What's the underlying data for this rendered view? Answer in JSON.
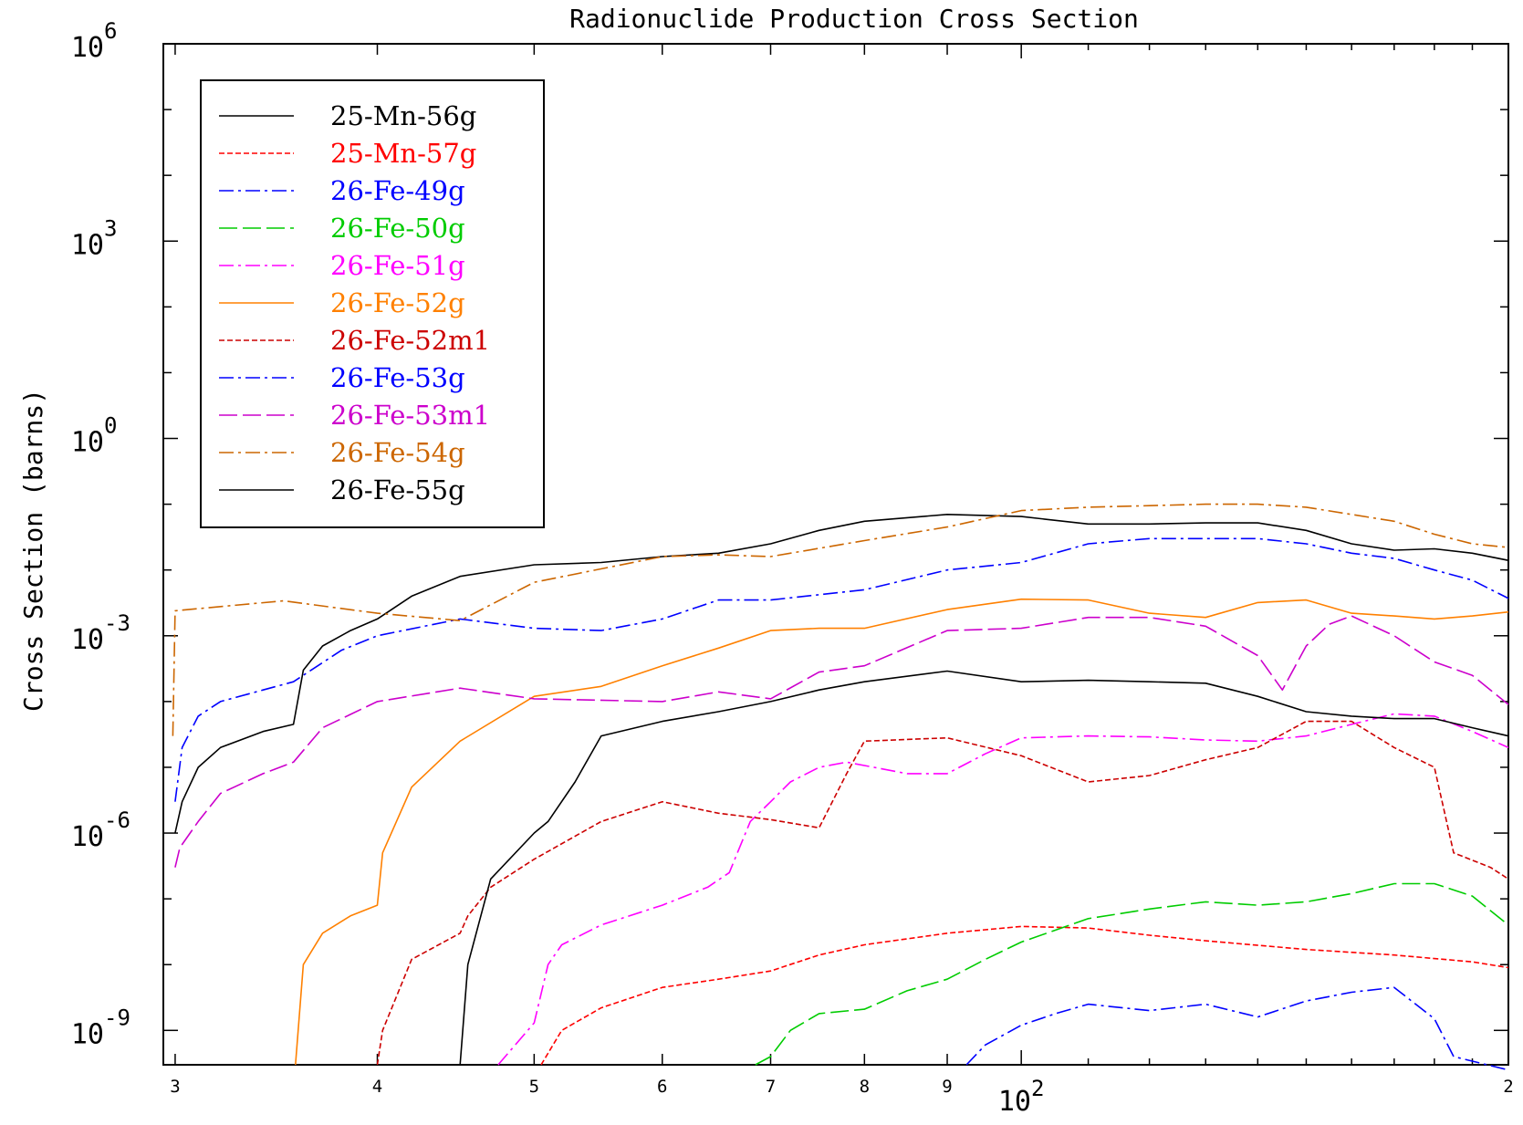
{
  "chart_data": {
    "type": "line",
    "title": "Radionuclide Production Cross Section",
    "xlabel": "",
    "ylabel": "Cross Section (barns)",
    "xscale": "log",
    "yscale": "log",
    "xlim": [
      29.5,
      200
    ],
    "ylim": [
      3e-10,
      1000000
    ],
    "x_multiplier_label": {
      "base": "10",
      "exp": "2"
    },
    "x_ticks": [
      {
        "value": 30,
        "label": "3"
      },
      {
        "value": 40,
        "label": "4"
      },
      {
        "value": 50,
        "label": "5"
      },
      {
        "value": 60,
        "label": "6"
      },
      {
        "value": 70,
        "label": "7"
      },
      {
        "value": 80,
        "label": "8"
      },
      {
        "value": 90,
        "label": "9"
      },
      {
        "value": 200,
        "label": "2"
      }
    ],
    "y_ticks": [
      {
        "value": 1e-09,
        "base": "10",
        "exp": "-9"
      },
      {
        "value": 1e-06,
        "base": "10",
        "exp": "-6"
      },
      {
        "value": 0.001,
        "base": "10",
        "exp": "-3"
      },
      {
        "value": 1,
        "base": "10",
        "exp": "0"
      },
      {
        "value": 1000,
        "base": "10",
        "exp": "3"
      },
      {
        "value": 1000000,
        "base": "10",
        "exp": "6"
      }
    ],
    "legend_position": "top-left",
    "grid": false,
    "series": [
      {
        "name": "25-Mn-56g",
        "color": "#000000",
        "dash": "solid",
        "points": [
          [
            30,
            1e-06
          ],
          [
            30.3,
            3e-06
          ],
          [
            31,
            1e-05
          ],
          [
            32,
            2e-05
          ],
          [
            34,
            3.5e-05
          ],
          [
            35.5,
            4.5e-05
          ],
          [
            36,
            0.0003
          ],
          [
            37,
            0.0007
          ],
          [
            38.5,
            0.0012
          ],
          [
            40,
            0.0018
          ],
          [
            42,
            0.004
          ],
          [
            45,
            0.008
          ],
          [
            50,
            0.012
          ],
          [
            55,
            0.013
          ],
          [
            60,
            0.016
          ],
          [
            65,
            0.018
          ],
          [
            70,
            0.025
          ],
          [
            75,
            0.04
          ],
          [
            80,
            0.055
          ],
          [
            90,
            0.07
          ],
          [
            100,
            0.065
          ],
          [
            110,
            0.05
          ],
          [
            120,
            0.05
          ],
          [
            130,
            0.052
          ],
          [
            140,
            0.052
          ],
          [
            150,
            0.04
          ],
          [
            160,
            0.025
          ],
          [
            170,
            0.02
          ],
          [
            180,
            0.021
          ],
          [
            190,
            0.018
          ],
          [
            200,
            0.014
          ]
        ]
      },
      {
        "name": "25-Mn-57g",
        "color": "#ff0000",
        "dash": "short",
        "points": [
          [
            50.5,
            3e-10
          ],
          [
            52,
            1e-09
          ],
          [
            55,
            2.2e-09
          ],
          [
            60,
            4.5e-09
          ],
          [
            65,
            6e-09
          ],
          [
            70,
            8e-09
          ],
          [
            75,
            1.4e-08
          ],
          [
            80,
            2e-08
          ],
          [
            90,
            3e-08
          ],
          [
            100,
            3.8e-08
          ],
          [
            110,
            3.6e-08
          ],
          [
            120,
            2.8e-08
          ],
          [
            130,
            2.3e-08
          ],
          [
            150,
            1.7e-08
          ],
          [
            170,
            1.4e-08
          ],
          [
            190,
            1.1e-08
          ],
          [
            200,
            9e-09
          ]
        ]
      },
      {
        "name": "26-Fe-49g",
        "color": "#0000ff",
        "dash": "dashdot",
        "points": [
          [
            92.5,
            3e-10
          ],
          [
            95,
            6e-10
          ],
          [
            100,
            1.2e-09
          ],
          [
            105,
            1.8e-09
          ],
          [
            110,
            2.5e-09
          ],
          [
            120,
            2e-09
          ],
          [
            130,
            2.5e-09
          ],
          [
            140,
            1.6e-09
          ],
          [
            150,
            2.8e-09
          ],
          [
            160,
            3.8e-09
          ],
          [
            170,
            4.5e-09
          ],
          [
            180,
            1.5e-09
          ],
          [
            185,
            4e-10
          ],
          [
            200,
            2.5e-10
          ]
        ]
      },
      {
        "name": "26-Fe-50g",
        "color": "#00cc00",
        "dash": "longdash",
        "points": [
          [
            68.5,
            3e-10
          ],
          [
            70,
            4e-10
          ],
          [
            72,
            1e-09
          ],
          [
            75,
            1.8e-09
          ],
          [
            80,
            2.1e-09
          ],
          [
            85,
            4e-09
          ],
          [
            90,
            6e-09
          ],
          [
            95,
            1.2e-08
          ],
          [
            100,
            2.2e-08
          ],
          [
            110,
            5e-08
          ],
          [
            120,
            7e-08
          ],
          [
            130,
            9e-08
          ],
          [
            140,
            8e-08
          ],
          [
            150,
            9e-08
          ],
          [
            160,
            1.2e-07
          ],
          [
            170,
            1.7e-07
          ],
          [
            180,
            1.7e-07
          ],
          [
            190,
            1.1e-07
          ],
          [
            200,
            4e-08
          ]
        ]
      },
      {
        "name": "26-Fe-51g",
        "color": "#ff00ff",
        "dash": "dashdot",
        "points": [
          [
            47.5,
            3e-10
          ],
          [
            50,
            1.3e-09
          ],
          [
            51,
            1e-08
          ],
          [
            52,
            2e-08
          ],
          [
            55,
            4e-08
          ],
          [
            60,
            8e-08
          ],
          [
            64,
            1.5e-07
          ],
          [
            66,
            2.5e-07
          ],
          [
            68,
            1.5e-06
          ],
          [
            70,
            3e-06
          ],
          [
            72,
            6e-06
          ],
          [
            75,
            1e-05
          ],
          [
            78,
            1.2e-05
          ],
          [
            85,
            8e-06
          ],
          [
            90,
            8e-06
          ],
          [
            95,
            1.6e-05
          ],
          [
            100,
            2.8e-05
          ],
          [
            110,
            3e-05
          ],
          [
            120,
            2.9e-05
          ],
          [
            130,
            2.6e-05
          ],
          [
            140,
            2.5e-05
          ],
          [
            150,
            3e-05
          ],
          [
            160,
            4.5e-05
          ],
          [
            170,
            6.5e-05
          ],
          [
            180,
            6e-05
          ],
          [
            190,
            3.5e-05
          ],
          [
            200,
            2e-05
          ]
        ]
      },
      {
        "name": "26-Fe-52g",
        "color": "#ff8000",
        "dash": "solid",
        "points": [
          [
            35.6,
            3e-10
          ],
          [
            36,
            1e-08
          ],
          [
            37,
            3e-08
          ],
          [
            38.5,
            5.5e-08
          ],
          [
            40,
            8e-08
          ],
          [
            40.3,
            5e-07
          ],
          [
            42,
            5e-06
          ],
          [
            45,
            2.5e-05
          ],
          [
            50,
            0.00012
          ],
          [
            55,
            0.00017
          ],
          [
            60,
            0.00035
          ],
          [
            65,
            0.00065
          ],
          [
            70,
            0.0012
          ],
          [
            75,
            0.0013
          ],
          [
            80,
            0.0013
          ],
          [
            90,
            0.0025
          ],
          [
            100,
            0.0036
          ],
          [
            110,
            0.0035
          ],
          [
            120,
            0.0022
          ],
          [
            130,
            0.0019
          ],
          [
            140,
            0.0032
          ],
          [
            150,
            0.0035
          ],
          [
            160,
            0.0022
          ],
          [
            170,
            0.002
          ],
          [
            180,
            0.0018
          ],
          [
            190,
            0.002
          ],
          [
            200,
            0.0023
          ]
        ]
      },
      {
        "name": "26-Fe-52m1",
        "color": "#cc0000",
        "dash": "short",
        "points": [
          [
            40,
            3e-10
          ],
          [
            40.3,
            1e-09
          ],
          [
            42,
            1.2e-08
          ],
          [
            45,
            3e-08
          ],
          [
            45.5,
            5.5e-08
          ],
          [
            47,
            1.5e-07
          ],
          [
            50,
            4e-07
          ],
          [
            55,
            1.5e-06
          ],
          [
            60,
            3e-06
          ],
          [
            65,
            2e-06
          ],
          [
            70,
            1.6e-06
          ],
          [
            75,
            1.2e-06
          ],
          [
            78,
            8e-06
          ],
          [
            80,
            2.5e-05
          ],
          [
            90,
            2.8e-05
          ],
          [
            100,
            1.5e-05
          ],
          [
            110,
            6e-06
          ],
          [
            120,
            7.5e-06
          ],
          [
            130,
            1.3e-05
          ],
          [
            140,
            2e-05
          ],
          [
            150,
            5e-05
          ],
          [
            160,
            5e-05
          ],
          [
            170,
            2e-05
          ],
          [
            180,
            1e-05
          ],
          [
            185,
            5e-07
          ],
          [
            195,
            3e-07
          ],
          [
            200,
            2e-07
          ]
        ]
      },
      {
        "name": "26-Fe-53g",
        "color": "#0000ff",
        "dash": "dashdot",
        "points": [
          [
            30,
            3e-06
          ],
          [
            30.3,
            2e-05
          ],
          [
            31,
            6e-05
          ],
          [
            32,
            0.0001
          ],
          [
            34,
            0.00015
          ],
          [
            35.5,
            0.0002
          ],
          [
            38,
            0.0006
          ],
          [
            40,
            0.001
          ],
          [
            45,
            0.0018
          ],
          [
            50,
            0.0013
          ],
          [
            55,
            0.0012
          ],
          [
            60,
            0.0018
          ],
          [
            65,
            0.0035
          ],
          [
            70,
            0.0035
          ],
          [
            80,
            0.005
          ],
          [
            90,
            0.01
          ],
          [
            100,
            0.013
          ],
          [
            110,
            0.025
          ],
          [
            120,
            0.03
          ],
          [
            140,
            0.03
          ],
          [
            150,
            0.025
          ],
          [
            160,
            0.018
          ],
          [
            170,
            0.015
          ],
          [
            180,
            0.01
          ],
          [
            190,
            0.007
          ],
          [
            200,
            0.0037
          ]
        ]
      },
      {
        "name": "26-Fe-53m1",
        "color": "#cc00cc",
        "dash": "longdash",
        "points": [
          [
            30,
            3e-07
          ],
          [
            30.2,
            6e-07
          ],
          [
            31,
            1.5e-06
          ],
          [
            32,
            4e-06
          ],
          [
            34,
            8e-06
          ],
          [
            35.5,
            1.2e-05
          ],
          [
            37,
            4e-05
          ],
          [
            40,
            0.0001
          ],
          [
            45,
            0.00016
          ],
          [
            50,
            0.00011
          ],
          [
            60,
            0.0001
          ],
          [
            65,
            0.00014
          ],
          [
            70,
            0.00011
          ],
          [
            75,
            0.00028
          ],
          [
            80,
            0.00035
          ],
          [
            90,
            0.0012
          ],
          [
            100,
            0.0013
          ],
          [
            110,
            0.0019
          ],
          [
            120,
            0.0019
          ],
          [
            130,
            0.0014
          ],
          [
            140,
            0.0005
          ],
          [
            145,
            0.00015
          ],
          [
            150,
            0.0007
          ],
          [
            155,
            0.0015
          ],
          [
            160,
            0.002
          ],
          [
            170,
            0.001
          ],
          [
            180,
            0.0004
          ],
          [
            190,
            0.00025
          ],
          [
            200,
            9e-05
          ]
        ]
      },
      {
        "name": "26-Fe-54g",
        "color": "#cc6600",
        "dash": "dashdot",
        "points": [
          [
            29.9,
            3e-05
          ],
          [
            30,
            0.0024
          ],
          [
            35,
            0.0034
          ],
          [
            40,
            0.0022
          ],
          [
            45,
            0.0017
          ],
          [
            50,
            0.0065
          ],
          [
            60,
            0.016
          ],
          [
            65,
            0.017
          ],
          [
            70,
            0.016
          ],
          [
            80,
            0.028
          ],
          [
            90,
            0.045
          ],
          [
            100,
            0.08
          ],
          [
            110,
            0.09
          ],
          [
            120,
            0.095
          ],
          [
            130,
            0.1
          ],
          [
            140,
            0.1
          ],
          [
            150,
            0.09
          ],
          [
            170,
            0.055
          ],
          [
            180,
            0.035
          ],
          [
            190,
            0.025
          ],
          [
            200,
            0.022
          ]
        ]
      },
      {
        "name": "26-Fe-55g",
        "color": "#000000",
        "dash": "solid",
        "points": [
          [
            45,
            3e-10
          ],
          [
            45.5,
            1e-08
          ],
          [
            47,
            2e-07
          ],
          [
            50,
            1e-06
          ],
          [
            51,
            1.5e-06
          ],
          [
            53,
            6e-06
          ],
          [
            55,
            3e-05
          ],
          [
            60,
            5e-05
          ],
          [
            65,
            7e-05
          ],
          [
            70,
            0.0001
          ],
          [
            75,
            0.00015
          ],
          [
            80,
            0.0002
          ],
          [
            90,
            0.00029
          ],
          [
            100,
            0.0002
          ],
          [
            110,
            0.00021
          ],
          [
            120,
            0.0002
          ],
          [
            130,
            0.00019
          ],
          [
            140,
            0.00012
          ],
          [
            150,
            7e-05
          ],
          [
            160,
            6e-05
          ],
          [
            170,
            5.5e-05
          ],
          [
            180,
            5.5e-05
          ],
          [
            190,
            4e-05
          ],
          [
            200,
            3e-05
          ]
        ]
      }
    ]
  }
}
